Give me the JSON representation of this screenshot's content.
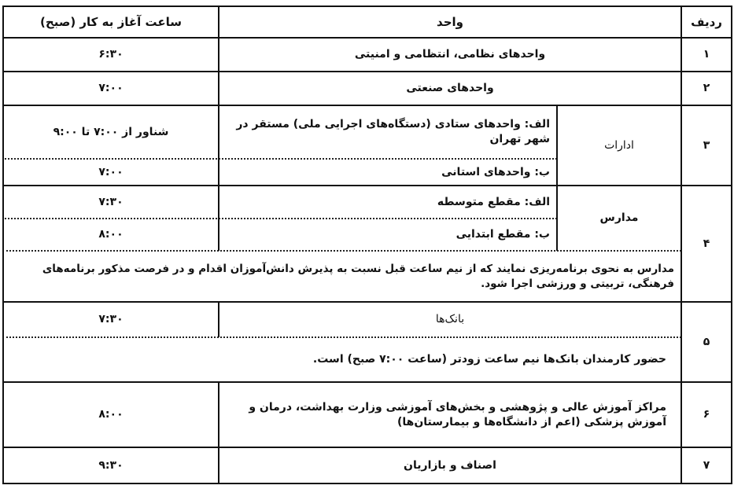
{
  "header": {
    "row_no": "ردیف",
    "unit": "واحد",
    "start_time": "ساعت آغاز به کار (صبح)"
  },
  "rows": [
    {
      "no": "۱",
      "unit": "واحدهای نظامی، انتظامی و امنیتی",
      "time": "۶:۳۰"
    },
    {
      "no": "۲",
      "unit": "واحدهای صنعتی",
      "time": "۷:۰۰"
    },
    {
      "no": "۳",
      "group": "ادارات",
      "items": [
        {
          "unit": "الف: واحدهای ستادی (دستگاه‌های اجرایی ملی) مستقر در شهر تهران",
          "time": "شناور از ۷:۰۰ تا ۹:۰۰"
        },
        {
          "unit": "ب: واحدهای استانی",
          "time": "۷:۰۰"
        }
      ]
    },
    {
      "no": "۴",
      "group": "مدارس",
      "items": [
        {
          "unit": "الف: مقطع متوسطه",
          "time": "۷:۳۰"
        },
        {
          "unit": "ب: مقطع ابتدایی",
          "time": "۸:۰۰"
        }
      ],
      "note": "مدارس به نحوی برنامه‌ریزی نمایند که از نیم ساعت قبل نسبت به پذیرش دانش‌آموزان اقدام و در فرصت مذکور برنامه‌های فرهنگی، تربیتی و ورزشی اجرا شود."
    },
    {
      "no": "۵",
      "unit": "بانک‌ها",
      "time": "۷:۳۰",
      "note": "حضور کارمندان بانک‌ها نیم ساعت زودتر (ساعت ۷:۰۰ صبح) است."
    },
    {
      "no": "۶",
      "unit": "مراکز آموزش عالی و پژوهشی و بخش‌های آموزشی وزارت بهداشت، درمان و آموزش پزشکی (اعم از دانشگاه‌ها و بیمارستان‌ها)",
      "time": "۸:۰۰"
    },
    {
      "no": "۷",
      "unit": "اصناف و بازاریان",
      "time": "۹:۳۰"
    }
  ]
}
